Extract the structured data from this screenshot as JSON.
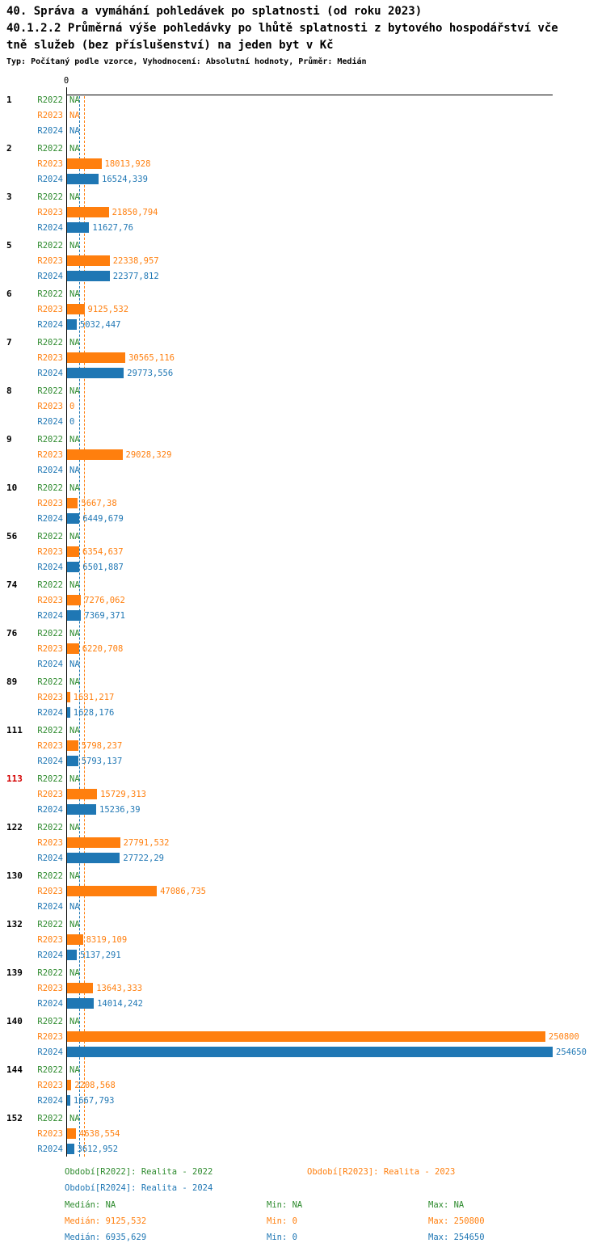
{
  "header": {
    "title_line1": "40. Správa a vymáhání pohledávek po splatnosti (od roku 2023)",
    "title_line2": "40.1.2.2 Průměrná výše pohledávky po lhůtě splatnosti z bytového hospodářství vče",
    "title_line3": "tně služeb (bez příslušenství) na jeden byt v Kč",
    "subtitle": "Typ: Počítaný podle vzorce, Vyhodnocení: Absolutní hodnoty, Průměr: Medián"
  },
  "colors": {
    "r2022": "#2e8b2e",
    "r2023": "#ff7f0e",
    "r2024": "#1f77b4",
    "highlight": "#d40000",
    "axis": "#000000"
  },
  "chart_data": {
    "type": "bar",
    "orientation": "horizontal",
    "title": "40.1.2.2 Průměrná výše pohledávky po lhůtě splatnosti z bytového hospodářství včetně služeb (bez příslušenství) na jeden byt v Kč",
    "xlabel": "",
    "ylabel": "",
    "axis_zero_label": "0",
    "xlim": [
      0,
      254650
    ],
    "grid": false,
    "legend_position": "bottom",
    "series_names": [
      "R2022",
      "R2023",
      "R2024"
    ],
    "medians": {
      "R2022": null,
      "R2023": 9125.532,
      "R2024": 6935.629
    },
    "groups": [
      {
        "id": "1",
        "highlight": false,
        "values": [
          null,
          null,
          null
        ],
        "labels": [
          "NA",
          "NA",
          "NA"
        ]
      },
      {
        "id": "2",
        "highlight": false,
        "values": [
          null,
          18013.928,
          16524.339
        ],
        "labels": [
          "NA",
          "18013,928",
          "16524,339"
        ]
      },
      {
        "id": "3",
        "highlight": false,
        "values": [
          null,
          21850.794,
          11627.76
        ],
        "labels": [
          "NA",
          "21850,794",
          "11627,76"
        ]
      },
      {
        "id": "5",
        "highlight": false,
        "values": [
          null,
          22338.957,
          22377.812
        ],
        "labels": [
          "NA",
          "22338,957",
          "22377,812"
        ]
      },
      {
        "id": "6",
        "highlight": false,
        "values": [
          null,
          9125.532,
          5032.447
        ],
        "labels": [
          "NA",
          "9125,532",
          "5032,447"
        ]
      },
      {
        "id": "7",
        "highlight": false,
        "values": [
          null,
          30565.116,
          29773.556
        ],
        "labels": [
          "NA",
          "30565,116",
          "29773,556"
        ]
      },
      {
        "id": "8",
        "highlight": false,
        "values": [
          null,
          0,
          0
        ],
        "labels": [
          "NA",
          "0",
          "0"
        ]
      },
      {
        "id": "9",
        "highlight": false,
        "values": [
          null,
          29028.329,
          null
        ],
        "labels": [
          "NA",
          "29028,329",
          "NA"
        ]
      },
      {
        "id": "10",
        "highlight": false,
        "values": [
          null,
          5667.38,
          6449.679
        ],
        "labels": [
          "NA",
          "5667,38",
          "6449,679"
        ]
      },
      {
        "id": "56",
        "highlight": false,
        "values": [
          null,
          6354.637,
          6501.887
        ],
        "labels": [
          "NA",
          "6354,637",
          "6501,887"
        ]
      },
      {
        "id": "74",
        "highlight": false,
        "values": [
          null,
          7276.062,
          7369.371
        ],
        "labels": [
          "NA",
          "7276,062",
          "7369,371"
        ]
      },
      {
        "id": "76",
        "highlight": false,
        "values": [
          null,
          6220.708,
          null
        ],
        "labels": [
          "NA",
          "6220,708",
          "NA"
        ]
      },
      {
        "id": "89",
        "highlight": false,
        "values": [
          null,
          1631.217,
          1628.176
        ],
        "labels": [
          "NA",
          "1631,217",
          "1628,176"
        ]
      },
      {
        "id": "111",
        "highlight": false,
        "values": [
          null,
          5798.237,
          5793.137
        ],
        "labels": [
          "NA",
          "5798,237",
          "5793,137"
        ]
      },
      {
        "id": "113",
        "highlight": true,
        "values": [
          null,
          15729.313,
          15236.39
        ],
        "labels": [
          "NA",
          "15729,313",
          "15236,39"
        ]
      },
      {
        "id": "122",
        "highlight": false,
        "values": [
          null,
          27791.532,
          27722.29
        ],
        "labels": [
          "NA",
          "27791,532",
          "27722,29"
        ]
      },
      {
        "id": "130",
        "highlight": false,
        "values": [
          null,
          47086.735,
          null
        ],
        "labels": [
          "NA",
          "47086,735",
          "NA"
        ]
      },
      {
        "id": "132",
        "highlight": false,
        "values": [
          null,
          8319.109,
          5137.291
        ],
        "labels": [
          "NA",
          "8319,109",
          "5137,291"
        ]
      },
      {
        "id": "139",
        "highlight": false,
        "values": [
          null,
          13643.333,
          14014.242
        ],
        "labels": [
          "NA",
          "13643,333",
          "14014,242"
        ]
      },
      {
        "id": "140",
        "highlight": false,
        "values": [
          null,
          250800,
          254650
        ],
        "labels": [
          "NA",
          "250800",
          "254650"
        ]
      },
      {
        "id": "144",
        "highlight": false,
        "values": [
          null,
          2208.568,
          1667.793
        ],
        "labels": [
          "NA",
          "2208,568",
          "1667,793"
        ]
      },
      {
        "id": "152",
        "highlight": false,
        "values": [
          null,
          4638.554,
          3612.952
        ],
        "labels": [
          "NA",
          "4638,554",
          "3612,952"
        ]
      }
    ]
  },
  "legend": {
    "items": [
      {
        "series": "r2022",
        "col": 0,
        "row": 0,
        "label": "Období[R2022]: Realita - 2022"
      },
      {
        "series": "r2023",
        "col": 1,
        "row": 0,
        "label": "Období[R2023]: Realita - 2023"
      },
      {
        "series": "r2024",
        "col": 0,
        "row": 1,
        "label": "Období[R2024]: Realita - 2024"
      }
    ],
    "stats": [
      {
        "series": "r2022",
        "median": "Medián: NA",
        "min": "Min: NA",
        "max": "Max: NA"
      },
      {
        "series": "r2023",
        "median": "Medián: 9125,532",
        "min": "Min: 0",
        "max": "Max: 250800"
      },
      {
        "series": "r2024",
        "median": "Medián: 6935,629",
        "min": "Min: 0",
        "max": "Max: 254650"
      }
    ]
  }
}
